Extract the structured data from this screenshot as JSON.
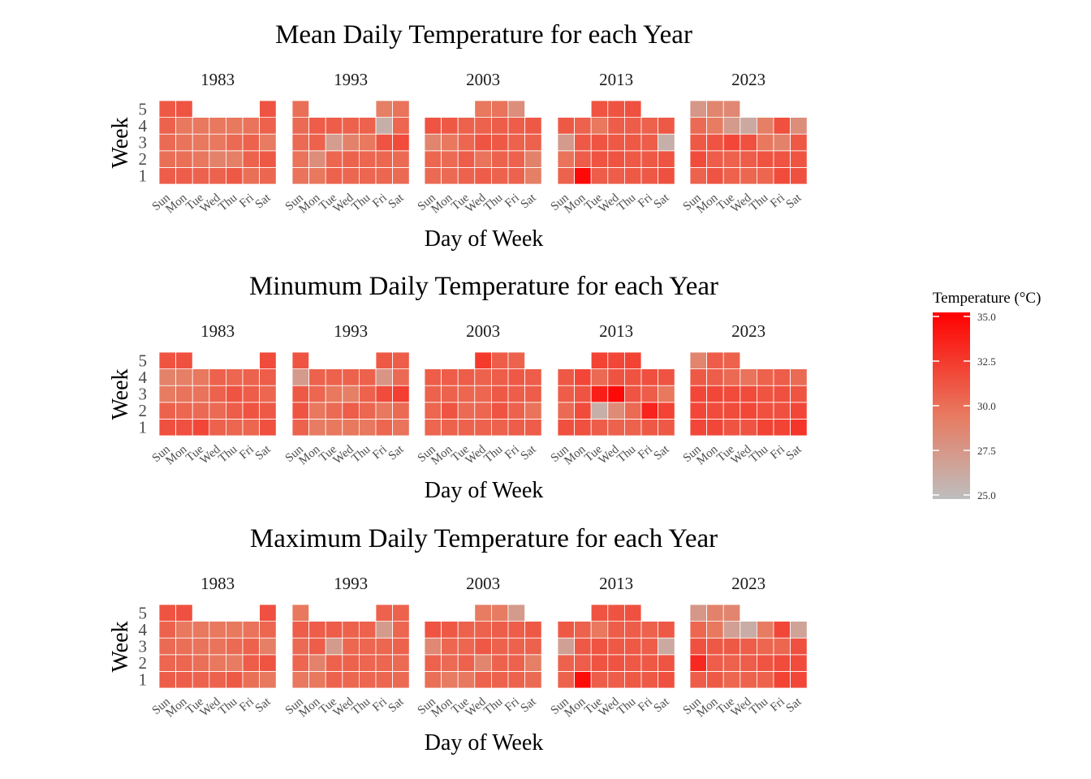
{
  "chart_data": [
    {
      "type": "heatmap",
      "title": "Mean Daily Temperature for each Year",
      "xlabel": "Day of Week",
      "ylabel": "Week",
      "days": [
        "Sun",
        "Mon",
        "Tue",
        "Wed",
        "Thu",
        "Fri",
        "Sat"
      ],
      "weeks": [
        "1",
        "2",
        "3",
        "4",
        "5"
      ],
      "panels": [
        {
          "year": "1983",
          "values": [
            [
              30.8,
              30.8,
              30.6,
              30.6,
              31.0,
              30.0,
              30.4
            ],
            [
              30.0,
              30.0,
              29.6,
              29.0,
              29.2,
              30.6,
              31.0
            ],
            [
              30.2,
              29.8,
              29.6,
              29.6,
              30.2,
              30.6,
              29.4
            ],
            [
              30.6,
              29.6,
              29.6,
              29.6,
              29.6,
              29.8,
              30.6
            ],
            [
              31.0,
              31.2,
              null,
              null,
              null,
              null,
              31.2
            ]
          ]
        },
        {
          "year": "1993",
          "values": [
            [
              29.8,
              29.6,
              30.6,
              30.4,
              30.4,
              30.4,
              30.2
            ],
            [
              29.8,
              28.2,
              30.4,
              30.6,
              30.4,
              30.4,
              30.2
            ],
            [
              30.2,
              30.6,
              27.2,
              29.0,
              29.6,
              31.2,
              31.6
            ],
            [
              30.2,
              30.8,
              30.8,
              30.6,
              30.6,
              26.0,
              30.4
            ],
            [
              30.0,
              null,
              null,
              null,
              null,
              29.2,
              29.8
            ]
          ]
        },
        {
          "year": "2003",
          "values": [
            [
              30.2,
              30.2,
              30.6,
              30.8,
              30.6,
              30.6,
              29.2
            ],
            [
              30.4,
              30.2,
              30.8,
              29.8,
              30.6,
              30.6,
              29.0
            ],
            [
              28.8,
              29.6,
              30.4,
              31.2,
              31.0,
              30.6,
              30.6
            ],
            [
              31.2,
              31.0,
              30.6,
              30.6,
              30.8,
              30.8,
              31.0
            ],
            [
              null,
              null,
              null,
              29.6,
              29.8,
              28.2,
              null
            ]
          ]
        },
        {
          "year": "2013",
          "values": [
            [
              30.6,
              34.6,
              30.8,
              30.8,
              31.0,
              31.0,
              31.4
            ],
            [
              29.8,
              30.8,
              31.2,
              31.2,
              31.0,
              31.0,
              31.2
            ],
            [
              27.4,
              31.0,
              31.2,
              31.0,
              31.0,
              30.8,
              26.0
            ],
            [
              31.0,
              30.6,
              29.6,
              30.8,
              30.8,
              30.6,
              31.0
            ],
            [
              null,
              null,
              31.2,
              31.2,
              31.4,
              null,
              null
            ]
          ]
        },
        {
          "year": "2023",
          "values": [
            [
              30.6,
              31.2,
              30.6,
              30.4,
              30.4,
              31.6,
              31.4
            ],
            [
              31.6,
              30.8,
              30.6,
              30.8,
              31.2,
              31.2,
              31.2
            ],
            [
              31.0,
              31.2,
              31.8,
              31.4,
              29.6,
              29.0,
              31.0
            ],
            [
              30.2,
              29.4,
              27.4,
              26.4,
              29.2,
              31.4,
              28.2
            ],
            [
              27.6,
              28.8,
              28.6,
              null,
              null,
              null,
              null
            ]
          ]
        }
      ]
    },
    {
      "type": "heatmap",
      "title": "Minumum Daily Temperature for each Year",
      "xlabel": "Day of Week",
      "ylabel": "Week",
      "days": [
        "Sun",
        "Mon",
        "Tue",
        "Wed",
        "Thu",
        "Fri",
        "Sat"
      ],
      "weeks": [
        "1",
        "2",
        "3",
        "4",
        "5"
      ],
      "panels": [
        {
          "year": "1983",
          "values": [
            [
              31.4,
              31.4,
              31.8,
              30.6,
              30.4,
              30.4,
              31.4
            ],
            [
              30.6,
              30.4,
              30.2,
              30.2,
              30.8,
              31.2,
              31.0
            ],
            [
              29.4,
              29.8,
              29.8,
              30.6,
              31.2,
              30.8,
              30.4
            ],
            [
              29.0,
              29.2,
              29.6,
              30.6,
              30.4,
              30.6,
              30.8
            ],
            [
              31.2,
              31.4,
              null,
              null,
              null,
              null,
              31.6
            ]
          ]
        },
        {
          "year": "1993",
          "values": [
            [
              30.6,
              29.4,
              29.6,
              29.6,
              29.6,
              30.4,
              29.8
            ],
            [
              31.2,
              29.6,
              30.2,
              30.8,
              30.4,
              29.6,
              30.2
            ],
            [
              31.0,
              30.4,
              29.6,
              29.2,
              30.6,
              31.6,
              32.2
            ],
            [
              27.4,
              30.6,
              30.6,
              30.6,
              30.6,
              27.8,
              30.2
            ],
            [
              31.2,
              null,
              null,
              null,
              null,
              31.0,
              30.8
            ]
          ]
        },
        {
          "year": "2003",
          "values": [
            [
              30.4,
              30.6,
              30.6,
              30.6,
              30.6,
              30.8,
              30.8
            ],
            [
              30.4,
              31.2,
              30.2,
              30.4,
              31.2,
              30.6,
              29.8
            ],
            [
              30.6,
              30.6,
              30.4,
              30.4,
              31.0,
              30.8,
              30.8
            ],
            [
              30.8,
              30.8,
              30.8,
              30.6,
              30.8,
              31.0,
              30.8
            ],
            [
              null,
              null,
              null,
              32.4,
              30.8,
              30.6,
              null
            ]
          ]
        },
        {
          "year": "2013",
          "values": [
            [
              31.4,
              31.4,
              30.8,
              30.6,
              30.6,
              31.0,
              31.0
            ],
            [
              30.2,
              31.6,
              26.0,
              28.4,
              30.2,
              33.4,
              32.0
            ],
            [
              30.8,
              31.2,
              33.6,
              34.6,
              31.2,
              30.8,
              29.6
            ],
            [
              31.0,
              31.8,
              30.2,
              31.2,
              31.2,
              31.4,
              31.2
            ],
            [
              null,
              null,
              32.0,
              31.8,
              32.0,
              null,
              null
            ]
          ]
        },
        {
          "year": "2023",
          "values": [
            [
              31.8,
              31.8,
              31.2,
              31.2,
              32.0,
              32.0,
              32.6
            ],
            [
              31.8,
              31.6,
              31.6,
              31.8,
              31.4,
              31.4,
              31.8
            ],
            [
              31.8,
              31.8,
              31.6,
              31.6,
              31.2,
              31.4,
              31.2
            ],
            [
              31.0,
              30.8,
              30.2,
              29.8,
              30.6,
              30.8,
              30.2
            ],
            [
              28.8,
              30.8,
              30.6,
              null,
              null,
              null,
              null
            ]
          ]
        }
      ]
    },
    {
      "type": "heatmap",
      "title": "Maximum Daily Temperature for each Year",
      "xlabel": "Day of Week",
      "ylabel": "Week",
      "days": [
        "Sun",
        "Mon",
        "Tue",
        "Wed",
        "Thu",
        "Fri",
        "Sat"
      ],
      "weeks": [
        "1",
        "2",
        "3",
        "4",
        "5"
      ],
      "panels": [
        {
          "year": "1983",
          "values": [
            [
              30.8,
              30.8,
              30.6,
              30.6,
              31.0,
              30.0,
              29.6
            ],
            [
              30.4,
              30.4,
              30.0,
              29.6,
              29.4,
              30.8,
              31.2
            ],
            [
              30.2,
              30.0,
              29.8,
              29.8,
              30.2,
              30.6,
              29.2
            ],
            [
              30.6,
              29.6,
              29.6,
              29.6,
              29.6,
              29.8,
              30.4
            ],
            [
              31.2,
              31.4,
              null,
              null,
              null,
              null,
              31.4
            ]
          ]
        },
        {
          "year": "1993",
          "values": [
            [
              29.6,
              29.6,
              30.6,
              30.4,
              30.4,
              30.4,
              30.2
            ],
            [
              30.4,
              29.0,
              30.6,
              30.6,
              30.4,
              30.4,
              30.2
            ],
            [
              30.2,
              30.8,
              27.4,
              30.4,
              30.4,
              30.4,
              30.6
            ],
            [
              30.8,
              30.8,
              30.8,
              30.6,
              30.6,
              27.4,
              30.4
            ],
            [
              29.6,
              null,
              null,
              null,
              null,
              30.6,
              30.6
            ]
          ]
        },
        {
          "year": "2003",
          "values": [
            [
              30.0,
              29.4,
              29.6,
              30.6,
              30.6,
              30.6,
              30.2
            ],
            [
              30.6,
              30.2,
              30.6,
              28.8,
              30.6,
              30.6,
              29.2
            ],
            [
              28.6,
              30.4,
              30.4,
              31.0,
              30.6,
              30.6,
              30.6
            ],
            [
              31.2,
              31.0,
              30.6,
              30.6,
              30.8,
              30.8,
              31.0
            ],
            [
              null,
              null,
              null,
              29.4,
              29.4,
              27.4,
              null
            ]
          ]
        },
        {
          "year": "2013",
          "values": [
            [
              30.6,
              34.4,
              30.8,
              30.8,
              31.0,
              31.0,
              31.4
            ],
            [
              30.6,
              30.8,
              31.2,
              31.2,
              31.0,
              31.0,
              31.2
            ],
            [
              27.0,
              31.0,
              31.2,
              31.0,
              31.0,
              30.8,
              26.4
            ],
            [
              31.0,
              30.6,
              29.6,
              30.8,
              30.8,
              30.6,
              31.0
            ],
            [
              null,
              null,
              31.2,
              31.2,
              31.4,
              null,
              null
            ]
          ]
        },
        {
          "year": "2023",
          "values": [
            [
              30.8,
              31.0,
              30.4,
              30.6,
              30.6,
              32.0,
              31.8
            ],
            [
              33.2,
              30.8,
              30.6,
              30.8,
              31.2,
              31.6,
              31.6
            ],
            [
              31.4,
              31.0,
              31.0,
              30.8,
              30.4,
              30.4,
              31.4
            ],
            [
              30.4,
              29.6,
              27.0,
              26.2,
              29.4,
              31.8,
              26.8
            ],
            [
              27.6,
              29.0,
              28.8,
              null,
              null,
              null,
              null
            ]
          ]
        }
      ]
    }
  ],
  "legend": {
    "title": "Temperature (°C)",
    "min": 25.0,
    "max": 35.0,
    "ticks": [
      "25.0",
      "27.5",
      "30.0",
      "32.5",
      "35.0"
    ],
    "low_color": "#bebebe",
    "mid_color": "#e87a60",
    "high_color": "#ff0000"
  }
}
